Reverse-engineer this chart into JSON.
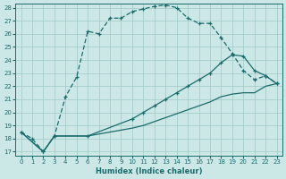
{
  "xlabel": "Humidex (Indice chaleur)",
  "xlim": [
    -0.5,
    23.5
  ],
  "ylim": [
    16.7,
    28.3
  ],
  "yticks": [
    17,
    18,
    19,
    20,
    21,
    22,
    23,
    24,
    25,
    26,
    27,
    28
  ],
  "xticks": [
    0,
    1,
    2,
    3,
    4,
    5,
    6,
    7,
    8,
    9,
    10,
    11,
    12,
    13,
    14,
    15,
    16,
    17,
    18,
    19,
    20,
    21,
    22,
    23
  ],
  "background_color": "#cce8e6",
  "grid_color": "#a0c8c4",
  "line_color": "#1a6b6b",
  "curve1_x": [
    0,
    1,
    2,
    3,
    4,
    5,
    6,
    7,
    8,
    9,
    10,
    11,
    12,
    13,
    14,
    15,
    16,
    17,
    18,
    19,
    20,
    21,
    22,
    23
  ],
  "curve1_y": [
    18.5,
    18.0,
    17.0,
    18.2,
    21.2,
    22.7,
    26.2,
    26.0,
    27.2,
    27.2,
    27.7,
    27.9,
    28.1,
    28.2,
    28.0,
    27.2,
    26.8,
    26.8,
    25.7,
    24.5,
    23.2,
    22.5,
    22.8,
    22.2
  ],
  "curve2_x": [
    0,
    2,
    3,
    6,
    10,
    11,
    12,
    13,
    14,
    15,
    16,
    17,
    18,
    19,
    20,
    21,
    22,
    23
  ],
  "curve2_y": [
    18.5,
    17.0,
    18.2,
    18.2,
    19.5,
    20.0,
    20.5,
    21.0,
    21.5,
    22.0,
    22.5,
    23.0,
    23.8,
    24.4,
    24.3,
    23.2,
    22.8,
    22.2
  ],
  "curve3_x": [
    0,
    2,
    3,
    6,
    10,
    11,
    12,
    13,
    14,
    15,
    16,
    17,
    18,
    19,
    20,
    21,
    22,
    23
  ],
  "curve3_y": [
    18.5,
    17.0,
    18.2,
    18.2,
    18.8,
    19.0,
    19.3,
    19.6,
    19.9,
    20.2,
    20.5,
    20.8,
    21.2,
    21.4,
    21.5,
    21.5,
    22.0,
    22.2
  ]
}
